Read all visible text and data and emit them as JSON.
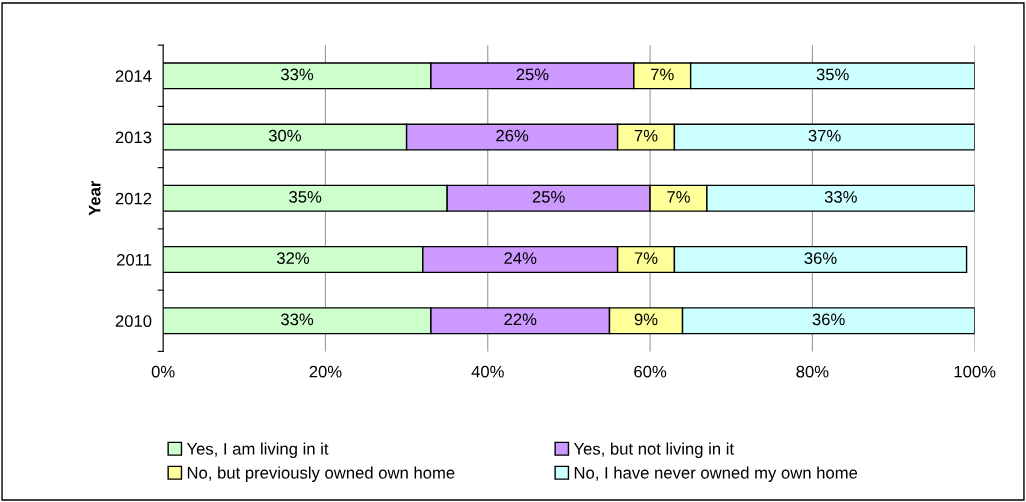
{
  "chart_data": {
    "type": "bar",
    "orientation": "horizontal",
    "stacked": true,
    "ylabel": "Year",
    "categories": [
      "2014",
      "2013",
      "2012",
      "2011",
      "2010"
    ],
    "series": [
      {
        "name": "Yes, I am living in it",
        "color": "#ccffcc",
        "values": [
          33,
          30,
          35,
          32,
          33
        ],
        "value_labels": [
          "33%",
          "30%",
          "35%",
          "32%",
          "33%"
        ]
      },
      {
        "name": "Yes, but not living in it",
        "color": "#cc99ff",
        "values": [
          25,
          26,
          25,
          24,
          22
        ],
        "value_labels": [
          "25%",
          "26%",
          "25%",
          "24%",
          "22%"
        ]
      },
      {
        "name": "No, but previously owned own home",
        "color": "#ffff99",
        "values": [
          7,
          7,
          7,
          7,
          9
        ],
        "value_labels": [
          "7%",
          "7%",
          "7%",
          "7%",
          "9%"
        ]
      },
      {
        "name": "No, I have never owned my own home",
        "color": "#ccffff",
        "values": [
          35,
          37,
          33,
          36,
          36
        ],
        "value_labels": [
          "35%",
          "37%",
          "33%",
          "36%",
          "36%"
        ]
      }
    ],
    "xlim": [
      0,
      100
    ],
    "xticks": [
      {
        "value": 0,
        "label": "0%"
      },
      {
        "value": 20,
        "label": "20%"
      },
      {
        "value": 40,
        "label": "40%"
      },
      {
        "value": 60,
        "label": "60%"
      },
      {
        "value": 80,
        "label": "80%"
      },
      {
        "value": 100,
        "label": "100%"
      }
    ],
    "grid": "x",
    "legend": "bottom"
  }
}
